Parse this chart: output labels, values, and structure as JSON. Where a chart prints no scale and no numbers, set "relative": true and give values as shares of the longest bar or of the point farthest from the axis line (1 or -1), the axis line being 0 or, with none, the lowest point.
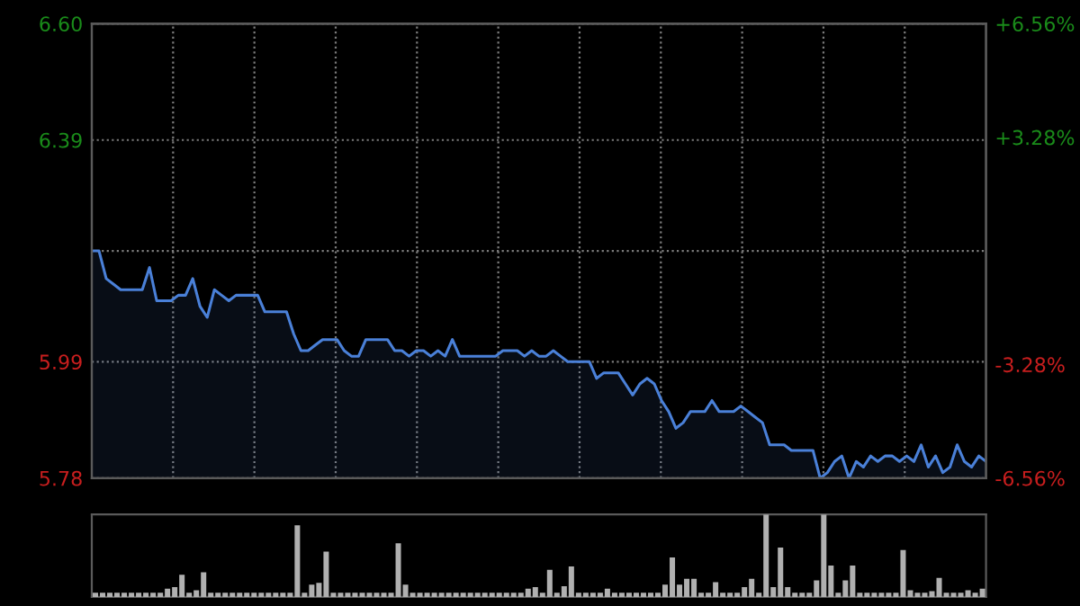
{
  "chart_data": [
    {
      "type": "area",
      "categories": [
        null,
        null,
        null,
        null,
        null,
        null,
        null,
        null,
        null,
        null,
        null,
        null,
        null,
        null,
        null,
        null,
        null,
        null,
        null,
        null,
        null,
        null,
        null,
        null,
        null,
        null,
        null,
        null,
        null,
        null,
        null,
        null,
        null,
        null,
        null,
        null,
        null,
        null,
        null,
        null,
        null,
        null,
        null,
        null,
        null,
        null,
        null,
        null,
        null,
        null,
        null,
        null,
        null,
        null,
        null,
        null,
        null,
        null,
        null,
        null,
        null,
        null,
        null,
        null,
        null,
        null,
        null,
        null,
        null,
        null,
        null,
        null,
        null,
        null,
        null,
        null,
        null,
        null,
        null,
        null,
        null,
        null,
        null,
        null,
        null,
        null,
        null,
        null,
        null,
        null,
        null,
        null,
        null,
        null,
        null,
        null,
        null,
        null,
        null,
        null,
        null,
        null,
        null,
        null,
        null,
        null,
        null,
        null,
        null,
        null,
        null,
        null,
        null,
        null,
        null,
        null,
        null,
        null,
        null,
        null,
        null,
        null,
        null,
        null,
        null
      ],
      "series": [
        {
          "color": "#4a80d8",
          "values": [
            6.19,
            6.19,
            6.14,
            6.13,
            6.12,
            6.12,
            6.12,
            6.12,
            6.16,
            6.1,
            6.1,
            6.1,
            6.11,
            6.11,
            6.14,
            6.09,
            6.07,
            6.12,
            6.11,
            6.1,
            6.11,
            6.11,
            6.11,
            6.11,
            6.08,
            6.08,
            6.08,
            6.08,
            6.04,
            6.01,
            6.01,
            6.02,
            6.03,
            6.03,
            6.03,
            6.01,
            6.0,
            6.0,
            6.03,
            6.03,
            6.03,
            6.03,
            6.01,
            6.01,
            6.0,
            6.01,
            6.01,
            6.0,
            6.01,
            6.0,
            6.03,
            6.0,
            6.0,
            6.0,
            6.0,
            6.0,
            6.0,
            6.01,
            6.01,
            6.01,
            6.0,
            6.01,
            6.0,
            6.0,
            6.01,
            6.0,
            5.99,
            5.99,
            5.99,
            5.99,
            5.96,
            5.97,
            5.97,
            5.97,
            5.95,
            5.93,
            5.95,
            5.96,
            5.95,
            5.92,
            5.9,
            5.87,
            5.88,
            5.9,
            5.9,
            5.9,
            5.92,
            5.9,
            5.9,
            5.9,
            5.91,
            5.9,
            5.89,
            5.88,
            5.84,
            5.84,
            5.84,
            5.83,
            5.83,
            5.83,
            5.83,
            5.78,
            5.79,
            5.81,
            5.82,
            5.78,
            5.81,
            5.8,
            5.82,
            5.81,
            5.82,
            5.82,
            5.81,
            5.82,
            5.81,
            5.84,
            5.8,
            5.82,
            5.79,
            5.8,
            5.84,
            5.81,
            5.8,
            5.82,
            5.81
          ]
        }
      ],
      "ylim": [
        5.78,
        6.6
      ],
      "yticks": [
        5.78,
        5.99,
        {
          "value": 6.19,
          "label": null
        },
        6.39,
        {
          "value": 6.6,
          "label": "6.60"
        }
      ],
      "y2lim": [
        -6.56,
        6.56
      ],
      "y2ticks": [
        {
          "value": -6.56,
          "label": "-6.56%"
        },
        {
          "value": -3.28,
          "label": "-3.28%"
        },
        {
          "value": 0,
          "label": null
        },
        {
          "value": 3.28,
          "label": "+3.28%"
        },
        {
          "value": 6.56,
          "label": "+6.56%"
        }
      ],
      "grid": true
    },
    {
      "type": "bar",
      "relative": true,
      "categories": [
        null,
        null,
        null,
        null,
        null,
        null,
        null,
        null,
        null,
        null,
        null,
        null,
        null,
        null,
        null,
        null,
        null,
        null,
        null,
        null,
        null,
        null,
        null,
        null,
        null,
        null,
        null,
        null,
        null,
        null,
        null,
        null,
        null,
        null,
        null,
        null,
        null,
        null,
        null,
        null,
        null,
        null,
        null,
        null,
        null,
        null,
        null,
        null,
        null,
        null,
        null,
        null,
        null,
        null,
        null,
        null,
        null,
        null,
        null,
        null,
        null,
        null,
        null,
        null,
        null,
        null,
        null,
        null,
        null,
        null,
        null,
        null,
        null,
        null,
        null,
        null,
        null,
        null,
        null,
        null,
        null,
        null,
        null,
        null,
        null,
        null,
        null,
        null,
        null,
        null,
        null,
        null,
        null,
        null,
        null,
        null,
        null,
        null,
        null,
        null,
        null,
        null,
        null,
        null,
        null,
        null,
        null,
        null,
        null,
        null,
        null,
        null,
        null,
        null,
        null,
        null,
        null,
        null,
        null,
        null,
        null,
        null,
        null,
        null
      ],
      "series": [
        {
          "color": "#b0b0b0",
          "values": [
            0.05,
            0.05,
            0.05,
            0.05,
            0.05,
            0.05,
            0.05,
            0.05,
            0.05,
            0.05,
            0.1,
            0.12,
            0.27,
            0.05,
            0.08,
            0.3,
            0.05,
            0.05,
            0.05,
            0.05,
            0.05,
            0.05,
            0.05,
            0.05,
            0.05,
            0.05,
            0.05,
            0.05,
            0.87,
            0.05,
            0.15,
            0.17,
            0.55,
            0.05,
            0.05,
            0.05,
            0.05,
            0.05,
            0.05,
            0.05,
            0.05,
            0.05,
            0.65,
            0.15,
            0.05,
            0.05,
            0.05,
            0.05,
            0.05,
            0.05,
            0.05,
            0.05,
            0.05,
            0.05,
            0.05,
            0.05,
            0.05,
            0.05,
            0.05,
            0.05,
            0.1,
            0.12,
            0.05,
            0.33,
            0.05,
            0.13,
            0.37,
            0.05,
            0.05,
            0.05,
            0.05,
            0.1,
            0.05,
            0.05,
            0.05,
            0.05,
            0.05,
            0.05,
            0.05,
            0.15,
            0.48,
            0.15,
            0.22,
            0.22,
            0.05,
            0.05,
            0.18,
            0.05,
            0.05,
            0.05,
            0.12,
            0.22,
            0.05,
            1,
            0.12,
            0.6,
            0.12,
            0.05,
            0.05,
            0.05,
            0.2,
            1,
            0.38,
            0.05,
            0.2,
            0.38,
            0.05,
            0.05,
            0.05,
            0.05,
            0.05,
            0.05,
            0.57,
            0.08,
            0.05,
            0.05,
            0.07,
            0.23,
            0.05,
            0.05,
            0.05,
            0.08,
            0.05,
            0.1
          ]
        }
      ]
    }
  ]
}
